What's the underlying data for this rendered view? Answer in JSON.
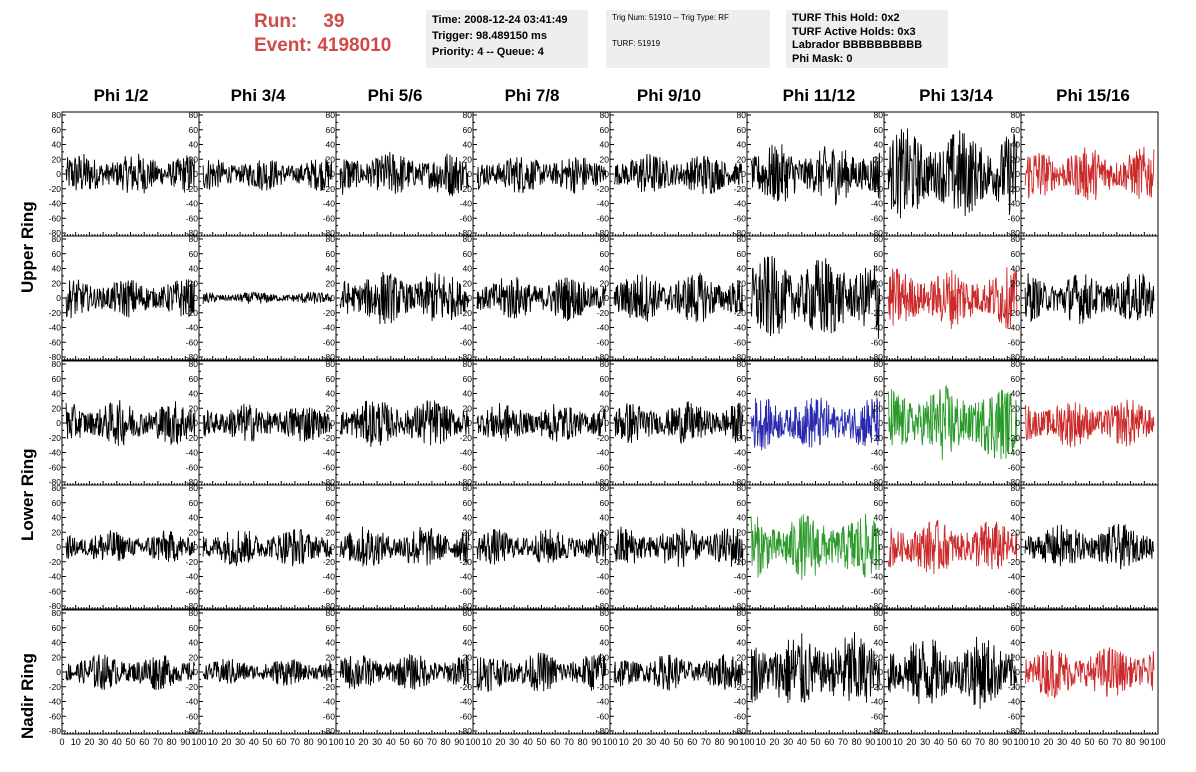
{
  "header": {
    "run_label": "Run:",
    "run_value": "39",
    "event_label": "Event:",
    "event_value": "4198010"
  },
  "info_box_1": [
    "Time: 2008-12-24 03:41:49",
    "Trigger: 98.489150 ms",
    "Priority: 4 -- Queue: 4"
  ],
  "info_box_2": [
    "Trig Num: 51910 -- Trig Type: RF",
    "TURF: 51919"
  ],
  "info_box_3": [
    "TURF This Hold: 0x2",
    "TURF Active Holds: 0x3",
    "Labrador BBBBBBBBBB",
    "Phi Mask: 0"
  ],
  "columns": [
    "Phi 1/2",
    "Phi 3/4",
    "Phi 5/6",
    "Phi 7/8",
    "Phi 9/10",
    "Phi 11/12",
    "Phi 13/14",
    "Phi 15/16"
  ],
  "ring_labels": [
    "Upper Ring",
    "Lower Ring",
    "Nadir Ring"
  ],
  "chart_data": {
    "type": "line",
    "xlim": [
      0,
      100
    ],
    "ylim": [
      -80,
      80
    ],
    "x_ticks": [
      "0",
      "10",
      "20",
      "30",
      "40",
      "50",
      "60",
      "70",
      "80",
      "90",
      "100"
    ],
    "y_ticks": [
      "80",
      "60",
      "40",
      "20",
      "0",
      "-20",
      "-40",
      "-60",
      "-80"
    ],
    "samples": 260,
    "colors": {
      "black": "#000000",
      "red": "#cc2a2a",
      "blue": "#2a2ab0",
      "green": "#2a9a2a"
    },
    "panels": [
      [
        "black",
        "black",
        "black",
        "black",
        "black",
        "black",
        "black",
        "red"
      ],
      [
        "black",
        "black",
        "black",
        "black",
        "black",
        "black",
        "red",
        "black"
      ],
      [
        "black",
        "black",
        "black",
        "black",
        "black",
        "blue",
        "green",
        "red"
      ],
      [
        "black",
        "black",
        "black",
        "black",
        "black",
        "green",
        "red",
        "black"
      ],
      [
        "black",
        "black",
        "black",
        "black",
        "black",
        "black",
        "black",
        "red"
      ]
    ],
    "amplitudes": [
      [
        14,
        11,
        15,
        13,
        14,
        20,
        30,
        18
      ],
      [
        13,
        4,
        18,
        15,
        17,
        28,
        20,
        17
      ],
      [
        15,
        13,
        16,
        13,
        14,
        18,
        25,
        16
      ],
      [
        11,
        13,
        14,
        12,
        14,
        22,
        18,
        15
      ],
      [
        12,
        9,
        12,
        13,
        12,
        26,
        24,
        17
      ]
    ]
  }
}
